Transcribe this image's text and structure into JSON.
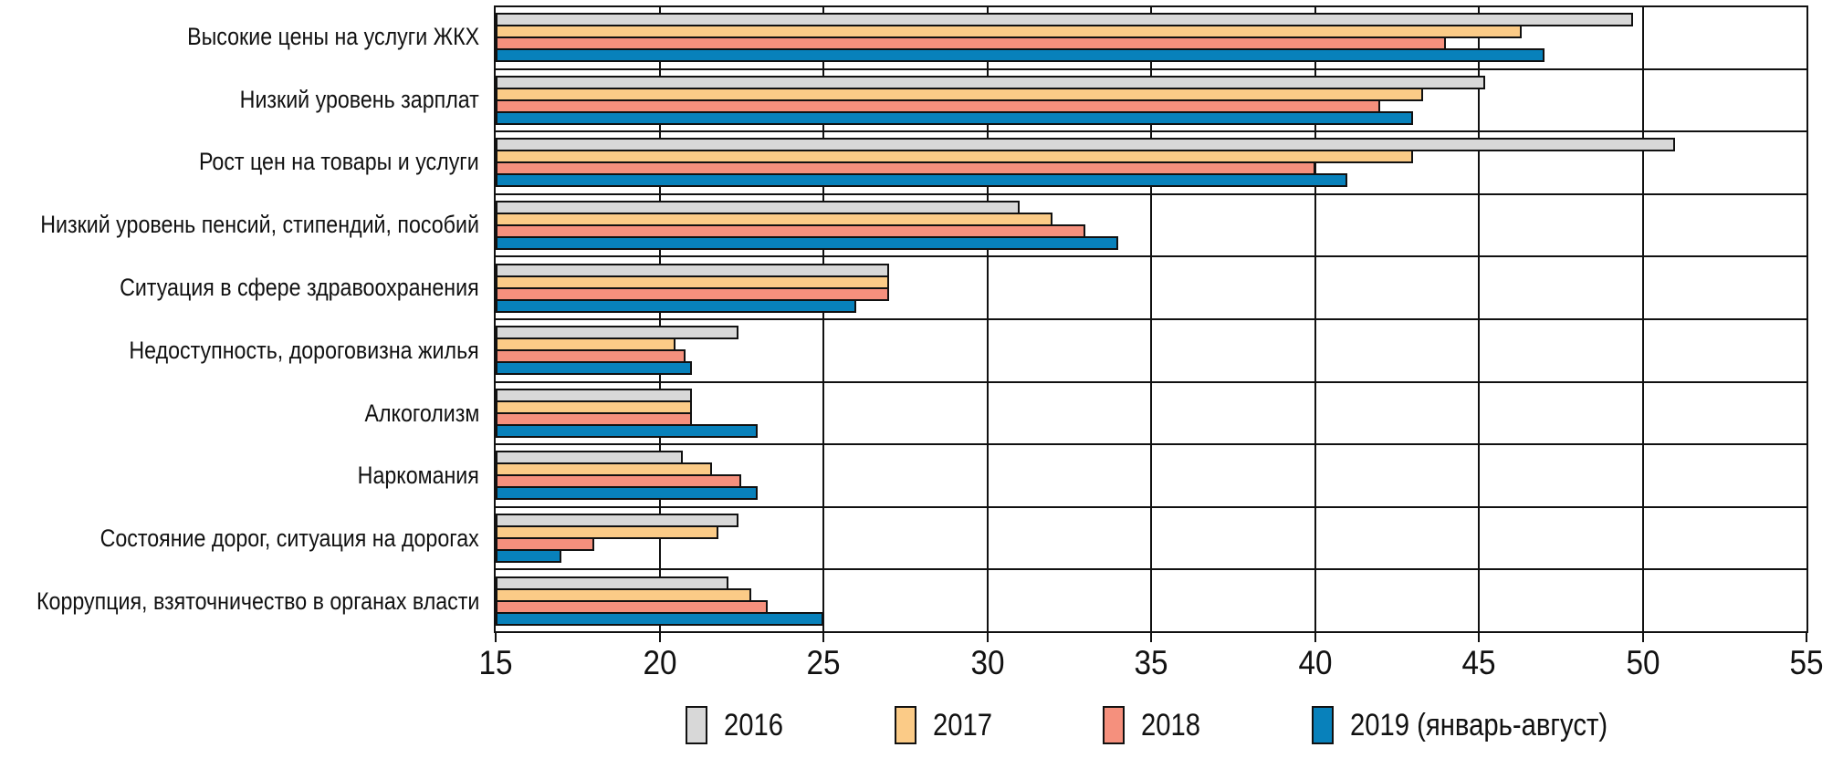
{
  "chart_data": {
    "type": "bar",
    "orientation": "horizontal",
    "title": "",
    "xlabel": "",
    "ylabel": "",
    "xlim": [
      15,
      55
    ],
    "xticks": [
      15,
      20,
      25,
      30,
      35,
      40,
      45,
      50,
      55
    ],
    "grid": "vertical",
    "legend_position": "bottom",
    "categories": [
      "Высокие цены на услуги ЖКХ",
      "Низкий уровень зарплат",
      "Рост цен на товары и услуги",
      "Низкий уровень пенсий, стипендий, пособий",
      "Ситуация в сфере здравоохранения",
      "Недоступность, дороговизна жилья",
      "Алкоголизм",
      "Наркомания",
      "Состояние дорог, ситуация на дорогах",
      "Коррупция, взяточничество в органах власти"
    ],
    "series": [
      {
        "name": "2016",
        "color": "#D8D8D8",
        "values": [
          49.7,
          45.2,
          51,
          31,
          27,
          22.4,
          21,
          20.7,
          22.4,
          22.1
        ]
      },
      {
        "name": "2017",
        "color": "#FBCB87",
        "values": [
          46.3,
          43.3,
          43,
          32,
          27,
          20.5,
          21,
          21.6,
          21.8,
          22.8
        ]
      },
      {
        "name": "2018",
        "color": "#F5907D",
        "values": [
          44,
          42,
          40,
          33,
          27,
          20.8,
          21,
          22.5,
          18,
          23.3
        ]
      },
      {
        "name": "2019 (январь-август)",
        "color": "#0881BB",
        "values": [
          47,
          43,
          41,
          34,
          26,
          21,
          23,
          23,
          17,
          25
        ]
      }
    ],
    "frame_color": "#111111",
    "gridline_color": "#111111"
  }
}
